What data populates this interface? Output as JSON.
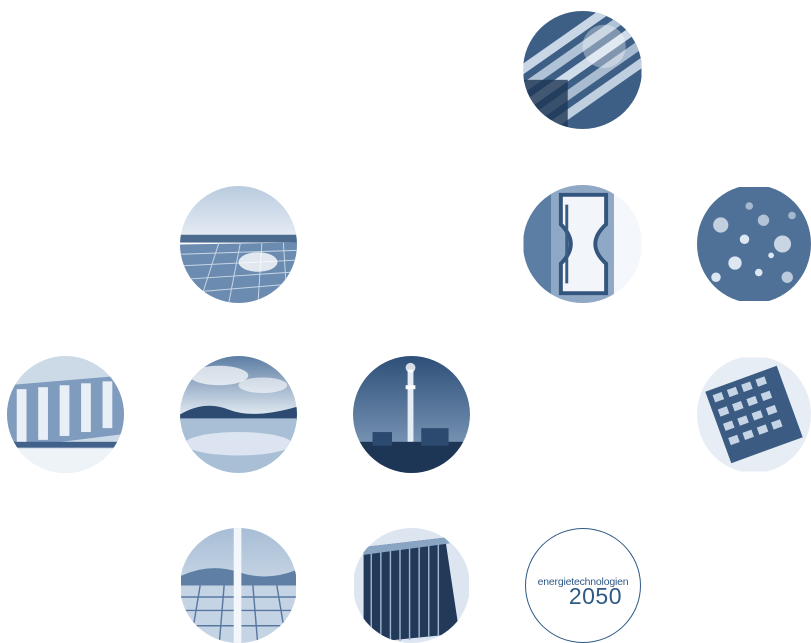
{
  "logo": {
    "word": "energietechnologien",
    "year": "2050"
  },
  "colors": {
    "accent": "#2f5a86",
    "deep": "#1f3c5e",
    "mid": "#6f8fb2",
    "light": "#c9d7e6",
    "background": "#ffffff"
  },
  "tiles": [
    {
      "subject": "fuel-cell-stack",
      "icon": "fuel-cell-icon"
    },
    {
      "subject": "solar-panels",
      "icon": "solar-panel-icon"
    },
    {
      "subject": "glass-hourglass",
      "icon": "hourglass-icon"
    },
    {
      "subject": "water-bubbles",
      "icon": "bubbles-icon"
    },
    {
      "subject": "hydro-dam",
      "icon": "dam-icon"
    },
    {
      "subject": "lake-landscape",
      "icon": "lake-icon"
    },
    {
      "subject": "power-plant-tower",
      "icon": "tower-icon"
    },
    {
      "subject": "microchip-grid",
      "icon": "chip-icon"
    },
    {
      "subject": "greenhouse",
      "icon": "greenhouse-icon"
    },
    {
      "subject": "building-facade",
      "icon": "building-icon"
    }
  ]
}
